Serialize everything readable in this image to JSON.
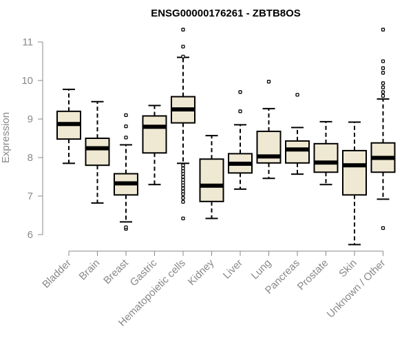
{
  "chart_data": {
    "type": "boxplot",
    "title": "ENSG00000176261 - ZBTB8OS",
    "xlabel": "",
    "ylabel": "Expression",
    "ylim": [
      5.6,
      11.4
    ],
    "yticks": [
      6,
      7,
      8,
      9,
      10,
      11
    ],
    "box_color": "#efe8d2",
    "categories": [
      "Bladder",
      "Brain",
      "Breast",
      "Gastric",
      "Hematopoietic cells",
      "Kidney",
      "Liver",
      "Lung",
      "Pancreas",
      "Prostate",
      "Skin",
      "Unknown / Other"
    ],
    "boxes": [
      {
        "min": 7.85,
        "q1": 8.48,
        "median": 8.87,
        "q3": 9.2,
        "max": 9.77,
        "outliers": []
      },
      {
        "min": 6.82,
        "q1": 7.8,
        "median": 8.24,
        "q3": 8.5,
        "max": 9.45,
        "outliers": []
      },
      {
        "min": 6.33,
        "q1": 7.03,
        "median": 7.33,
        "q3": 7.58,
        "max": 8.33,
        "outliers": [
          6.15,
          6.19,
          8.52,
          8.81,
          9.1
        ]
      },
      {
        "min": 7.3,
        "q1": 8.12,
        "median": 8.8,
        "q3": 9.08,
        "max": 9.35,
        "outliers": []
      },
      {
        "min": 7.85,
        "q1": 8.9,
        "median": 9.25,
        "q3": 9.58,
        "max": 10.6,
        "outliers": [
          6.42,
          6.85,
          6.95,
          7.05,
          7.12,
          7.2,
          7.28,
          7.35,
          7.42,
          7.5,
          7.58,
          7.65,
          7.72,
          7.8,
          10.62,
          10.88,
          11.32
        ]
      },
      {
        "min": 6.42,
        "q1": 6.86,
        "median": 7.27,
        "q3": 7.96,
        "max": 8.57,
        "outliers": []
      },
      {
        "min": 7.18,
        "q1": 7.6,
        "median": 7.84,
        "q3": 8.1,
        "max": 8.85,
        "outliers": [
          9.2,
          9.7
        ]
      },
      {
        "min": 7.46,
        "q1": 7.86,
        "median": 8.03,
        "q3": 8.68,
        "max": 9.27,
        "outliers": [
          9.97
        ]
      },
      {
        "min": 7.57,
        "q1": 7.86,
        "median": 8.21,
        "q3": 8.43,
        "max": 8.78,
        "outliers": [
          9.63
        ]
      },
      {
        "min": 7.3,
        "q1": 7.62,
        "median": 7.87,
        "q3": 8.36,
        "max": 8.93,
        "outliers": []
      },
      {
        "min": 5.74,
        "q1": 7.03,
        "median": 7.8,
        "q3": 8.18,
        "max": 8.92,
        "outliers": []
      },
      {
        "min": 6.92,
        "q1": 7.62,
        "median": 7.99,
        "q3": 8.38,
        "max": 9.52,
        "outliers": [
          6.17,
          9.6,
          9.7,
          9.82,
          9.93,
          10.2,
          10.32,
          10.5,
          11.32
        ]
      }
    ]
  }
}
